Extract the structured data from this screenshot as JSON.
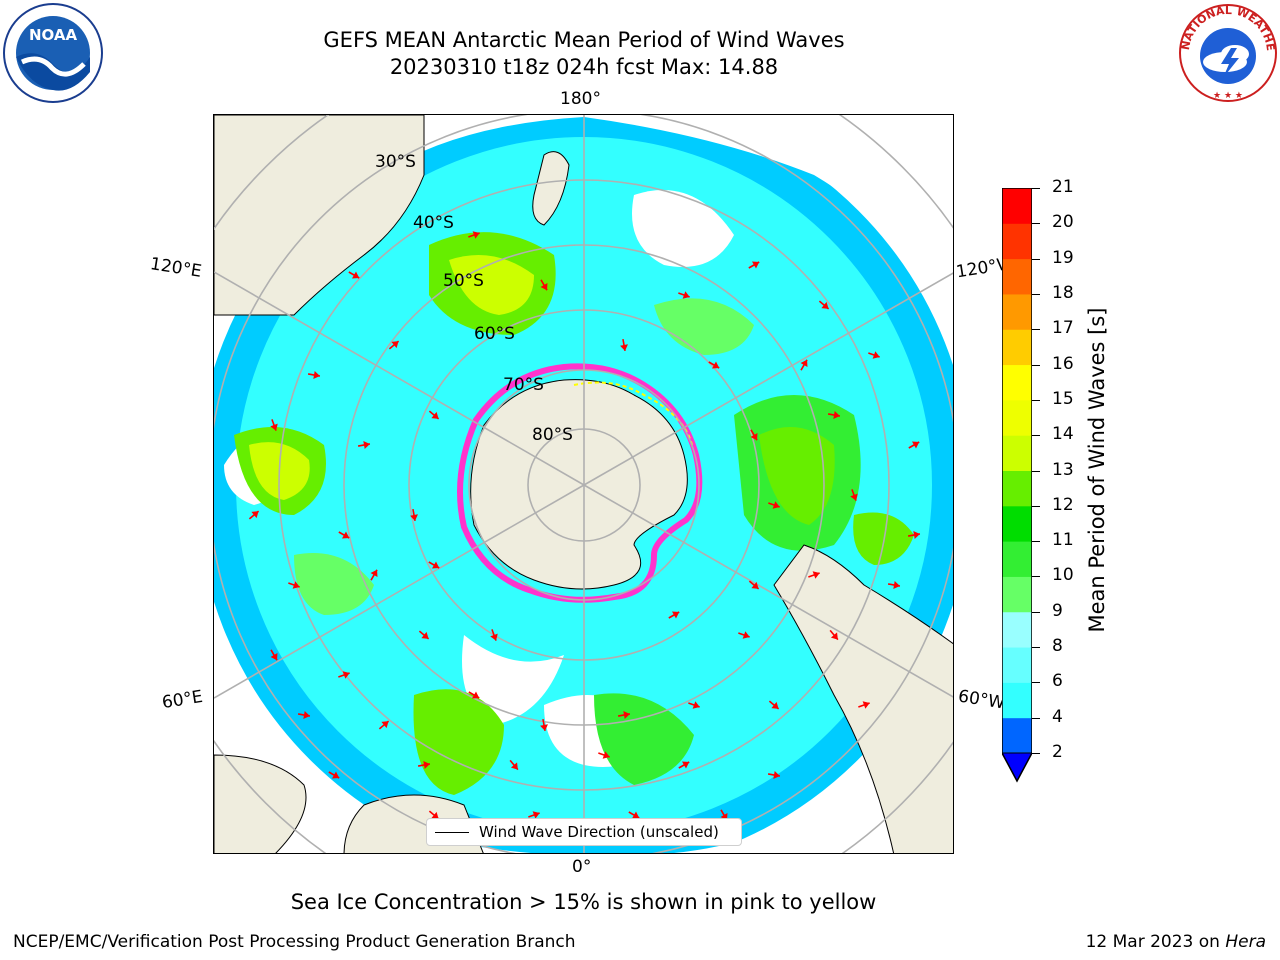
{
  "header": {
    "title_line1": "GEFS MEAN Antarctic Mean Period of Wind Waves",
    "title_line2": "20230310 t18z 024h fcst   Max: 14.88"
  },
  "logos": {
    "left": {
      "icon": "noaa-logo-icon",
      "text": "NOAA"
    },
    "right": {
      "icon": "nws-logo-icon",
      "text": "NATIONAL WEATHER SERVICE"
    }
  },
  "map": {
    "projection": "south-polar-stereographic",
    "longitude_labels": {
      "top": "180°",
      "bottom": "0°",
      "left_upper": "120°E",
      "left_lower": "60°E",
      "right_upper": "120°W",
      "right_lower": "60°W"
    },
    "latitude_labels": [
      "30°S",
      "40°S",
      "50°S",
      "60°S",
      "70°S",
      "80°S"
    ],
    "land_color": "#efedde",
    "grid_color": "#b0b0b0",
    "arrow_color": "#ff0000",
    "sea_ice_colors": [
      "#ff33cc",
      "#ffff00"
    ]
  },
  "legend": {
    "label": "Wind Wave Direction (unscaled)"
  },
  "colorbar": {
    "label": "Mean Period of Wind Waves [s]",
    "ticks": [
      "21",
      "20",
      "19",
      "18",
      "17",
      "16",
      "15",
      "14",
      "13",
      "12",
      "11",
      "10",
      "9",
      "8",
      "6",
      "4",
      "2"
    ],
    "levels": [
      2,
      4,
      6,
      8,
      9,
      10,
      11,
      12,
      13,
      14,
      15,
      16,
      17,
      18,
      19,
      20,
      21
    ],
    "colors": [
      "#0066ff",
      "#00ccff",
      "#33ffff",
      "#66ffff",
      "#99ffff",
      "#66ff66",
      "#33ee33",
      "#00dd00",
      "#66ee00",
      "#ccff00",
      "#eeff00",
      "#ffff00",
      "#ffcc00",
      "#ff9900",
      "#ff6600",
      "#ff3300",
      "#ff0000"
    ],
    "extend_below_color": "#0000ff"
  },
  "footnote": "Sea Ice Concentration > 15% is shown in pink to yellow",
  "credit": "NCEP/EMC/Verification Post Processing Product Generation Branch",
  "date_prefix": "12 Mar 2023 on ",
  "date_machine": "Hera"
}
